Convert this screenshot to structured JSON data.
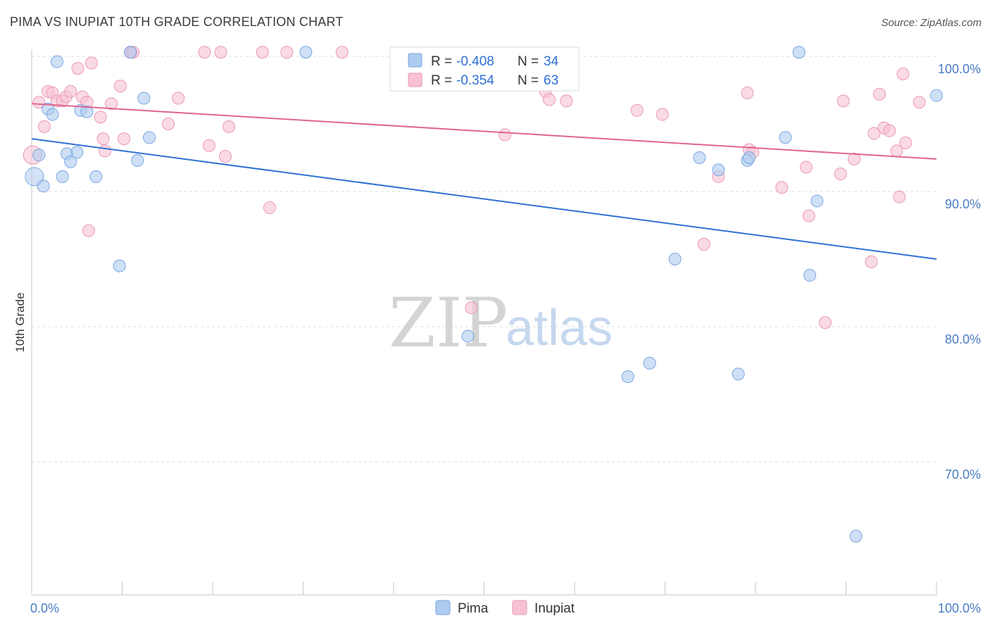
{
  "title": "PIMA VS INUPIAT 10TH GRADE CORRELATION CHART",
  "source": "Source: ZipAtlas.com",
  "watermark": {
    "zip": "ZIP",
    "atlas": "atlas"
  },
  "colors": {
    "pima_fill": "#aecbf0",
    "pima_stroke": "#7aa6de",
    "pima_line": "#2f72d3",
    "inupiat_fill": "#f7c1d3",
    "inupiat_stroke": "#eb98b5",
    "inupiat_line": "#e0668f",
    "axis_label": "#4a7cc4",
    "grid": "#dddddd"
  },
  "legend": {
    "rows": [
      {
        "r_label": "R =",
        "r_value": "-0.408",
        "n_label": "N =",
        "n_value": "34",
        "series": "pima"
      },
      {
        "r_label": "R =",
        "r_value": "-0.354",
        "n_label": "N =",
        "n_value": "63",
        "series": "inupiat"
      }
    ]
  },
  "bottom_legend": [
    {
      "label": "Pima",
      "series": "pima"
    },
    {
      "label": "Inupiat",
      "series": "inupiat"
    }
  ],
  "chart_data": {
    "type": "scatter",
    "title": "PIMA VS INUPIAT 10TH GRADE CORRELATION CHART",
    "xlabel": "",
    "ylabel": "10th Grade",
    "xlim": [
      0,
      100
    ],
    "ylim": [
      63,
      101.5
    ],
    "x_tick_labels": [
      {
        "value": 0,
        "label": "0.0%"
      },
      {
        "value": 100,
        "label": "100.0%"
      }
    ],
    "y_tick_labels": [
      {
        "value": 100,
        "label": "100.0%"
      },
      {
        "value": 90,
        "label": "90.0%"
      },
      {
        "value": 80,
        "label": "80.0%"
      },
      {
        "value": 70,
        "label": "70.0%"
      }
    ],
    "grid": "horizontal dashed",
    "legend_position": "top-center",
    "series": [
      {
        "name": "Pima",
        "key": "pima",
        "trend": {
          "x": [
            0,
            100
          ],
          "y": [
            93.9,
            85.0
          ]
        },
        "points": [
          [
            0.3,
            91.1
          ],
          [
            0.8,
            92.7
          ],
          [
            1.3,
            90.4
          ],
          [
            1.8,
            96.1
          ],
          [
            2.3,
            95.7
          ],
          [
            2.8,
            99.6
          ],
          [
            3.4,
            91.1
          ],
          [
            3.9,
            92.8
          ],
          [
            4.3,
            92.2
          ],
          [
            5.0,
            92.9
          ],
          [
            5.4,
            96.0
          ],
          [
            6.1,
            95.9
          ],
          [
            7.1,
            91.1
          ],
          [
            9.7,
            84.5
          ],
          [
            10.9,
            100.3
          ],
          [
            11.7,
            92.3
          ],
          [
            12.4,
            96.9
          ],
          [
            13.0,
            94.0
          ],
          [
            30.3,
            100.3
          ],
          [
            48.2,
            79.3
          ],
          [
            65.9,
            76.3
          ],
          [
            68.3,
            77.3
          ],
          [
            71.1,
            85.0
          ],
          [
            73.8,
            92.5
          ],
          [
            75.9,
            91.6
          ],
          [
            78.1,
            76.5
          ],
          [
            79.1,
            92.3
          ],
          [
            79.3,
            92.5
          ],
          [
            83.3,
            94.0
          ],
          [
            84.8,
            100.3
          ],
          [
            86.0,
            83.8
          ],
          [
            86.8,
            89.3
          ],
          [
            91.1,
            64.5
          ],
          [
            100.0,
            97.1
          ]
        ]
      },
      {
        "name": "Inupiat",
        "key": "inupiat",
        "trend": {
          "x": [
            0,
            100
          ],
          "y": [
            96.5,
            92.4
          ]
        },
        "points": [
          [
            0.1,
            92.7
          ],
          [
            0.8,
            96.6
          ],
          [
            1.4,
            94.8
          ],
          [
            1.8,
            97.4
          ],
          [
            2.3,
            97.3
          ],
          [
            2.8,
            96.7
          ],
          [
            3.4,
            96.7
          ],
          [
            3.8,
            97.0
          ],
          [
            4.3,
            97.4
          ],
          [
            5.1,
            99.1
          ],
          [
            5.6,
            97.0
          ],
          [
            6.1,
            96.6
          ],
          [
            6.3,
            87.1
          ],
          [
            6.6,
            99.5
          ],
          [
            7.6,
            95.5
          ],
          [
            7.9,
            93.9
          ],
          [
            8.1,
            93.0
          ],
          [
            8.8,
            96.5
          ],
          [
            9.8,
            97.8
          ],
          [
            10.2,
            93.9
          ],
          [
            11.0,
            100.3
          ],
          [
            11.2,
            100.3
          ],
          [
            15.1,
            95.0
          ],
          [
            16.2,
            96.9
          ],
          [
            19.1,
            100.3
          ],
          [
            19.6,
            93.4
          ],
          [
            20.9,
            100.3
          ],
          [
            21.4,
            92.6
          ],
          [
            21.8,
            94.8
          ],
          [
            25.5,
            100.3
          ],
          [
            26.3,
            88.8
          ],
          [
            28.2,
            100.3
          ],
          [
            34.3,
            100.3
          ],
          [
            47.0,
            100.2
          ],
          [
            48.6,
            81.4
          ],
          [
            52.3,
            94.2
          ],
          [
            56.8,
            97.4
          ],
          [
            57.2,
            96.8
          ],
          [
            59.1,
            96.7
          ],
          [
            66.9,
            96.0
          ],
          [
            69.7,
            95.7
          ],
          [
            74.3,
            86.1
          ],
          [
            75.9,
            91.1
          ],
          [
            79.3,
            93.1
          ],
          [
            79.7,
            92.9
          ],
          [
            79.1,
            97.3
          ],
          [
            82.9,
            90.3
          ],
          [
            85.6,
            91.8
          ],
          [
            85.9,
            88.2
          ],
          [
            87.7,
            80.3
          ],
          [
            89.4,
            91.3
          ],
          [
            89.7,
            96.7
          ],
          [
            90.9,
            92.4
          ],
          [
            92.8,
            84.8
          ],
          [
            93.1,
            94.3
          ],
          [
            93.7,
            97.2
          ],
          [
            94.2,
            94.7
          ],
          [
            94.8,
            94.5
          ],
          [
            95.6,
            93.0
          ],
          [
            95.9,
            89.6
          ],
          [
            96.3,
            98.7
          ],
          [
            96.6,
            93.6
          ],
          [
            98.1,
            96.6
          ]
        ]
      }
    ]
  }
}
